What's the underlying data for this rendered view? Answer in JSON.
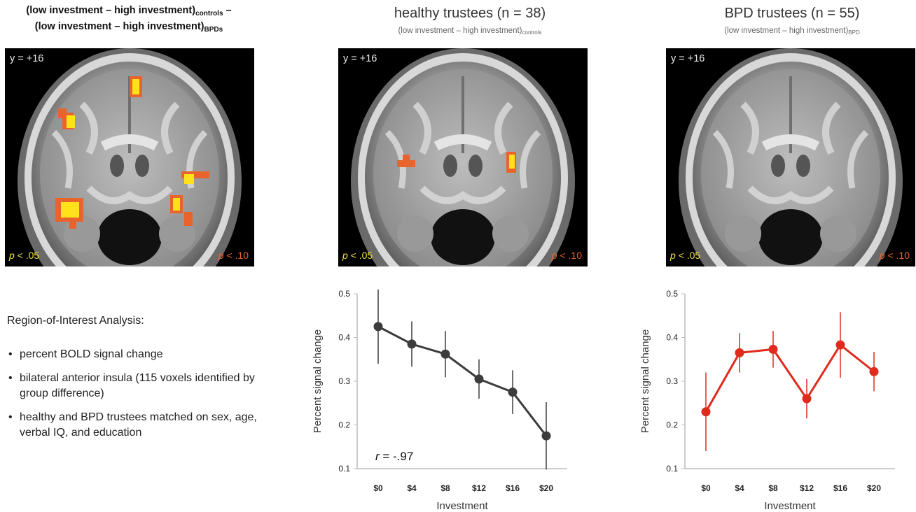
{
  "left_header": {
    "line1_main": "(low investment – high investment)",
    "line1_sub": "controls",
    "line1_tail": " –",
    "line2_main": "(low investment – high investment)",
    "line2_sub": "BPDs"
  },
  "panels": [
    {
      "title": "",
      "subtitle_main": "",
      "subtitle_sub": ""
    },
    {
      "title": "healthy trustees (n = 38)",
      "subtitle_main": "(low investment – high investment)",
      "subtitle_sub": "controls"
    },
    {
      "title": "BPD trustees (n = 55)",
      "subtitle_main": "(low investment – high investment)",
      "subtitle_sub": "BPD"
    }
  ],
  "brain": {
    "slice_label": "y = +16",
    "p_left_var": "p",
    "p_left_val": " < .05",
    "p_right_var": "p",
    "p_right_val": " < .10",
    "colors": {
      "strong": "#ffe21a",
      "weak": "#e8642c"
    }
  },
  "roi": {
    "title": "Region-of-Interest Analysis:",
    "bullets": [
      "percent BOLD signal change",
      "bilateral anterior insula (115 voxels identified by group difference)",
      "healthy and BPD trustees matched on sex, age, verbal IQ, and education"
    ]
  },
  "chart_data": [
    {
      "type": "line",
      "title": "",
      "xlabel": "Investment",
      "ylabel": "Percent signal change",
      "categories": [
        "$0",
        "$4",
        "$8",
        "$12",
        "$16",
        "$20"
      ],
      "ylim": [
        0.1,
        0.5
      ],
      "yticks": [
        "0.1",
        "0.2",
        "0.3",
        "0.4",
        "0.5"
      ],
      "series": [
        {
          "values": [
            0.425,
            0.385,
            0.362,
            0.305,
            0.275,
            0.175
          ],
          "error": [
            0.085,
            0.052,
            0.053,
            0.045,
            0.05,
            0.077
          ],
          "color": "#3c3c3c"
        }
      ],
      "annotation_var": "r",
      "annotation_val": " = -.97"
    },
    {
      "type": "line",
      "title": "",
      "xlabel": "Investment",
      "ylabel": "Percent signal change",
      "categories": [
        "$0",
        "$4",
        "$8",
        "$12",
        "$16",
        "$20"
      ],
      "ylim": [
        0.1,
        0.5
      ],
      "yticks": [
        "0.1",
        "0.2",
        "0.3",
        "0.4",
        "0.5"
      ],
      "series": [
        {
          "values": [
            0.23,
            0.365,
            0.373,
            0.26,
            0.383,
            0.322
          ],
          "error": [
            0.09,
            0.045,
            0.042,
            0.045,
            0.075,
            0.045
          ],
          "color": "#e02a1c"
        }
      ]
    }
  ]
}
